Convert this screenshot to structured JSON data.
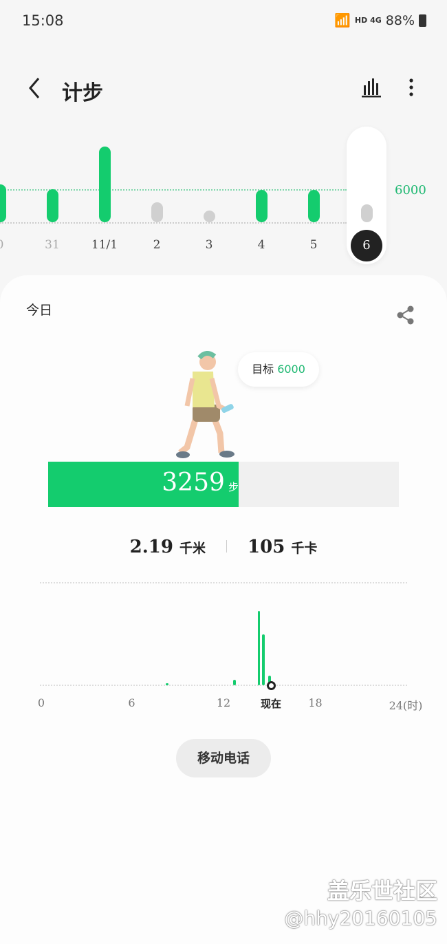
{
  "status_bar": {
    "time": "15:08",
    "network": "HD 4G",
    "battery": "88%"
  },
  "header": {
    "title": "计步",
    "back_icon": "chevron-left-icon",
    "chart_icon": "bar-chart-icon",
    "more_icon": "more-vertical-icon"
  },
  "weekly": {
    "goal_label": "6000",
    "goal": 6000,
    "selected": "6",
    "days": [
      {
        "label": "0",
        "steps": 7000,
        "met": true
      },
      {
        "label": "31",
        "steps": 6150,
        "met": true
      },
      {
        "label": "11/1",
        "steps": 14000,
        "met": true
      },
      {
        "label": "2",
        "steps": 3700,
        "met": false
      },
      {
        "label": "3",
        "steps": 1900,
        "met": false
      },
      {
        "label": "4",
        "steps": 6000,
        "met": true
      },
      {
        "label": "5",
        "steps": 6000,
        "met": true
      },
      {
        "label": "6",
        "steps": 3259,
        "met": false
      }
    ]
  },
  "today": {
    "label": "今日",
    "share_icon": "share-icon",
    "goal_prefix": "目标",
    "goal_value": "6000",
    "steps": "3259",
    "steps_unit": "步",
    "progress": 0.543,
    "distance": "2.19",
    "distance_unit": "千米",
    "calories": "105",
    "calories_unit": "千卡"
  },
  "hourly": {
    "ticks": [
      "0",
      "6",
      "12",
      "现在",
      "18",
      "24(时)"
    ],
    "now_hour": 15.1,
    "bars": [
      {
        "hour": 8.3,
        "steps": 30
      },
      {
        "hour": 12.7,
        "steps": 130
      },
      {
        "hour": 14.3,
        "steps": 1710
      },
      {
        "hour": 14.6,
        "steps": 1170
      },
      {
        "hour": 15.0,
        "steps": 220
      }
    ]
  },
  "source_button": "移动电话",
  "watermark": {
    "line1": "盖乐世社区",
    "line2": "@hhy20160105"
  },
  "colors": {
    "accent": "#14cc6e",
    "inactive": "#d0d0d0"
  }
}
